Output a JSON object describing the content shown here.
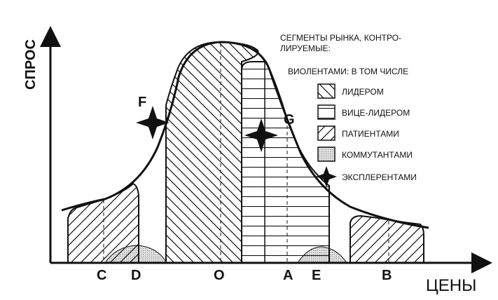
{
  "axes": {
    "y_label": "СПРОС",
    "x_label": "ЦЕНЫ"
  },
  "points": {
    "f": "F",
    "g": "G"
  },
  "x_ticks": [
    "C",
    "D",
    "O",
    "A",
    "E",
    "B"
  ],
  "legend": {
    "title_line1": "СЕГМЕНТЫ РЫНКА, КОНТРО-",
    "title_line2": "ЛИРУЕМЫЕ:",
    "subtitle": "ВИОЛЕНТАМИ: В ТОМ ЧИСЛЕ",
    "items": [
      {
        "label": "ЛИДЕРОМ",
        "pattern": "backslash-hatch"
      },
      {
        "label": "ВИЦЕ-ЛИДЕРОМ",
        "pattern": "horizontal-lines"
      },
      {
        "label": "ПАТИЕНТАМИ",
        "pattern": "forward-slash-hatch"
      },
      {
        "label": "КОММУТАНТАМИ",
        "pattern": "dotted-gray"
      },
      {
        "label": "ЭКСПЛЕРЕНТАМИ",
        "pattern": "star-icon"
      }
    ]
  }
}
